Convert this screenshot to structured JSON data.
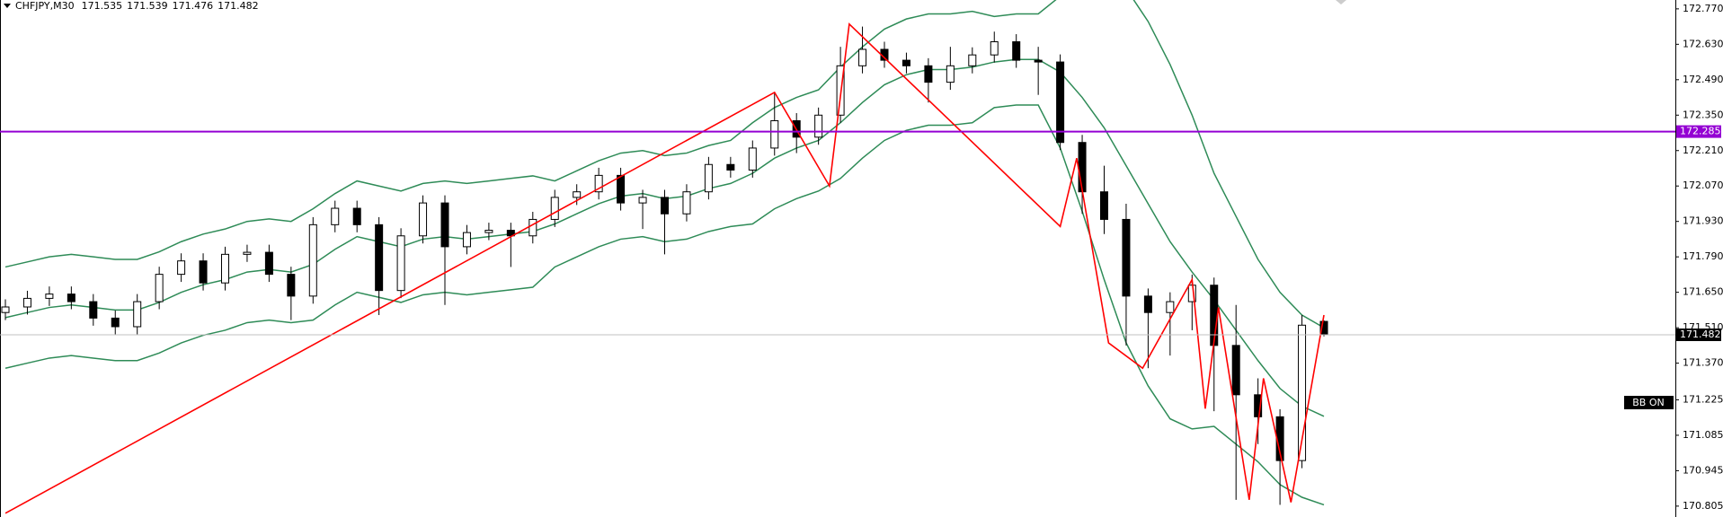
{
  "chart_data": {
    "type": "candlestick",
    "symbol": "CHFJPY,M30",
    "open": [
      171.57,
      171.592,
      171.626,
      171.643,
      171.613,
      171.548,
      171.514,
      171.613,
      171.721,
      171.774,
      171.687,
      171.8,
      171.808,
      171.721,
      171.635,
      171.917,
      171.982,
      171.917,
      171.657,
      171.873,
      172.003,
      171.83,
      171.886,
      171.895,
      171.873,
      171.938,
      172.025,
      172.047,
      172.112,
      172.003,
      172.025,
      171.96,
      172.047,
      172.155,
      172.133,
      172.22,
      172.328,
      172.263,
      172.35,
      172.545,
      172.61,
      172.567,
      172.545,
      172.48,
      172.545,
      172.588,
      172.64,
      172.567,
      172.56,
      172.242,
      172.047,
      171.938,
      171.635,
      171.57,
      171.613,
      171.678,
      171.44,
      171.245,
      171.158,
      170.985,
      171.535
    ],
    "high": [
      171.622,
      171.656,
      171.673,
      171.673,
      171.643,
      171.578,
      171.643,
      171.751,
      171.804,
      171.804,
      171.83,
      171.838,
      171.838,
      171.751,
      171.947,
      172.012,
      172.012,
      171.947,
      171.903,
      172.033,
      172.033,
      171.916,
      171.925,
      171.925,
      171.968,
      172.055,
      172.077,
      172.142,
      172.142,
      172.055,
      172.055,
      172.077,
      172.185,
      172.185,
      172.25,
      172.44,
      172.358,
      172.38,
      172.62,
      172.7,
      172.64,
      172.597,
      172.575,
      172.62,
      172.618,
      172.68,
      172.67,
      172.62,
      172.59,
      172.272,
      172.15,
      172.0,
      171.665,
      171.65,
      171.72,
      171.708,
      171.6,
      171.31,
      171.188,
      171.56,
      171.539
    ],
    "low": [
      171.54,
      171.562,
      171.596,
      171.583,
      171.518,
      171.484,
      171.484,
      171.583,
      171.691,
      171.657,
      171.657,
      171.77,
      171.691,
      171.54,
      171.605,
      171.887,
      171.887,
      171.56,
      171.627,
      171.843,
      171.6,
      171.8,
      171.856,
      171.75,
      171.843,
      171.908,
      171.995,
      172.017,
      171.973,
      171.9,
      171.8,
      171.93,
      172.017,
      172.103,
      172.103,
      172.19,
      172.2,
      172.233,
      172.32,
      172.515,
      172.537,
      172.515,
      172.4,
      172.45,
      172.515,
      172.558,
      172.537,
      172.43,
      172.212,
      171.96,
      171.88,
      171.44,
      171.35,
      171.4,
      171.5,
      171.18,
      170.83,
      171.05,
      170.81,
      170.955,
      171.476
    ],
    "close": [
      171.592,
      171.626,
      171.643,
      171.613,
      171.548,
      171.514,
      171.613,
      171.721,
      171.774,
      171.687,
      171.8,
      171.808,
      171.721,
      171.635,
      171.917,
      171.982,
      171.917,
      171.657,
      171.873,
      172.003,
      171.83,
      171.886,
      171.895,
      171.873,
      171.938,
      172.025,
      172.047,
      172.112,
      172.003,
      172.025,
      171.96,
      172.047,
      172.155,
      172.133,
      172.22,
      172.328,
      172.263,
      172.35,
      172.545,
      172.61,
      172.567,
      172.545,
      172.48,
      172.545,
      172.588,
      172.64,
      172.567,
      172.56,
      172.242,
      172.047,
      171.938,
      171.635,
      171.57,
      171.613,
      171.678,
      171.44,
      171.245,
      171.158,
      170.985,
      171.52,
      171.482
    ],
    "color_up": "#ffffff",
    "color_down": "#000000",
    "ylim": [
      170.762,
      172.805
    ],
    "yticks": [
      {
        "value": 172.77,
        "label": "172.770"
      },
      {
        "value": 172.63,
        "label": "172.630"
      },
      {
        "value": 172.49,
        "label": "172.490"
      },
      {
        "value": 172.35,
        "label": "172.350"
      },
      {
        "value": 172.21,
        "label": "172.210"
      },
      {
        "value": 172.07,
        "label": "172.070"
      },
      {
        "value": 171.93,
        "label": "171.930"
      },
      {
        "value": 171.79,
        "label": "171.790"
      },
      {
        "value": 171.65,
        "label": "171.650"
      },
      {
        "value": 171.51,
        "label": "171.510"
      },
      {
        "value": 171.37,
        "label": "171.370"
      },
      171.225,
      171.085,
      170.945,
      170.805
    ],
    "bollinger": {
      "color": "#2e8b57",
      "upper": [
        171.75,
        171.77,
        171.79,
        171.8,
        171.79,
        171.78,
        171.78,
        171.81,
        171.85,
        171.88,
        171.9,
        171.93,
        171.94,
        171.93,
        171.98,
        172.04,
        172.09,
        172.07,
        172.05,
        172.08,
        172.09,
        172.08,
        172.09,
        172.1,
        172.11,
        172.09,
        172.13,
        172.17,
        172.2,
        172.21,
        172.19,
        172.2,
        172.23,
        172.25,
        172.32,
        172.38,
        172.42,
        172.45,
        172.54,
        172.62,
        172.69,
        172.73,
        172.75,
        172.75,
        172.76,
        172.74,
        172.75,
        172.75,
        172.82,
        172.87,
        172.9,
        172.85,
        172.72,
        172.55,
        172.35,
        172.12,
        171.95,
        171.78,
        171.65,
        171.56,
        171.51
      ],
      "middle": [
        171.55,
        171.57,
        171.59,
        171.6,
        171.59,
        171.58,
        171.58,
        171.61,
        171.65,
        171.68,
        171.7,
        171.73,
        171.74,
        171.73,
        171.76,
        171.82,
        171.87,
        171.85,
        171.83,
        171.86,
        171.87,
        171.86,
        171.87,
        171.88,
        171.89,
        171.92,
        171.96,
        172.0,
        172.03,
        172.04,
        172.02,
        172.03,
        172.06,
        172.08,
        172.12,
        172.18,
        172.22,
        172.25,
        172.32,
        172.4,
        172.47,
        172.51,
        172.53,
        172.53,
        172.54,
        172.56,
        172.57,
        172.57,
        172.52,
        172.42,
        172.3,
        172.15,
        172.0,
        171.85,
        171.73,
        171.62,
        171.5,
        171.38,
        171.27,
        171.2,
        171.16
      ],
      "lower": [
        171.35,
        171.37,
        171.39,
        171.4,
        171.39,
        171.38,
        171.38,
        171.41,
        171.45,
        171.48,
        171.5,
        171.53,
        171.54,
        171.53,
        171.54,
        171.6,
        171.65,
        171.63,
        171.61,
        171.64,
        171.65,
        171.64,
        171.65,
        171.66,
        171.67,
        171.75,
        171.79,
        171.83,
        171.86,
        171.87,
        171.85,
        171.86,
        171.89,
        171.91,
        171.92,
        171.98,
        172.02,
        172.05,
        172.1,
        172.18,
        172.25,
        172.29,
        172.31,
        172.31,
        172.32,
        172.38,
        172.39,
        172.39,
        172.22,
        171.97,
        171.7,
        171.45,
        171.28,
        171.15,
        171.11,
        171.12,
        171.05,
        170.98,
        170.89,
        170.84,
        170.81
      ]
    },
    "zigzag": {
      "color": "#ff0000",
      "x": [
        0,
        35,
        37.5,
        38.4,
        48,
        48.75,
        50.2,
        51.75,
        54,
        54.6,
        55.2,
        56.6,
        57.25,
        58.5,
        60
      ],
      "values": [
        170.777,
        172.44,
        172.07,
        172.71,
        171.91,
        172.18,
        171.45,
        171.35,
        171.7,
        171.19,
        171.59,
        170.83,
        171.31,
        170.82,
        171.56
      ]
    },
    "hlines": [
      {
        "value": 172.285,
        "color": "#9400d3"
      }
    ],
    "badge": "BB ON"
  }
}
